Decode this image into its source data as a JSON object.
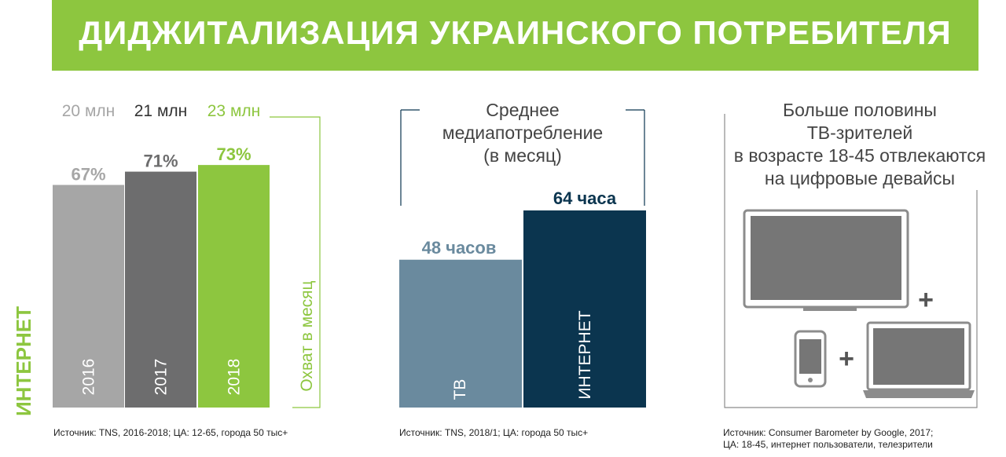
{
  "title": "ДИДЖИТАЛИЗАЦИЯ УКРАИНСКОГО ПОТРЕБИТЕЛЯ",
  "side_label": "ИНТЕРНЕТ",
  "colors": {
    "accent": "#8dc63f",
    "bar_2016": "#a6a6a6",
    "bar_2017": "#6d6d6e",
    "tv": "#6a8a9e",
    "internet": "#0b354f",
    "device_gray": "#767676",
    "device_frame": "#ffffff"
  },
  "chart_data": [
    {
      "type": "bar",
      "categories": [
        "2016",
        "2017",
        "2018"
      ],
      "values": [
        67,
        71,
        73
      ],
      "value_labels": [
        "67%",
        "71%",
        "73%"
      ],
      "top_labels": [
        "20 млн",
        "21 млн",
        "23 млн"
      ],
      "bracket_label": "Охват в месяц",
      "ylim": [
        0,
        100
      ],
      "source": "Источник: TNS, 2016-2018; ЦА: 12-65, города 50 тыс+"
    },
    {
      "type": "bar",
      "title": "Среднее медиапотребление (в месяц)",
      "title_lines": [
        "Среднее",
        "медиапотребление",
        "(в месяц)"
      ],
      "categories": [
        "ТВ",
        "ИНТЕРНЕТ"
      ],
      "values": [
        48,
        64
      ],
      "value_labels": [
        "48 часов",
        "64 часа"
      ],
      "source": "Источник: TNS, 2018/1; ЦА: города 50 тыс+"
    }
  ],
  "devices_panel": {
    "caption_lines": [
      "Больше половины",
      "ТВ-зрителей",
      "в возрасте 18-45 отвлекаются",
      "на цифровые девайсы"
    ],
    "plus": "+",
    "icons": [
      "tv-icon",
      "smartphone-icon",
      "laptop-icon"
    ],
    "source_lines": [
      "Источник: Consumer Barometer by Google, 2017;",
      "ЦА: 18-45, интернет пользователи, телезрители"
    ]
  }
}
